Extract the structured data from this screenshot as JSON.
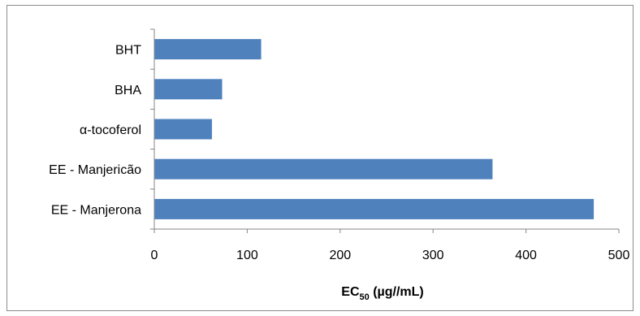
{
  "chart_data": {
    "type": "bar",
    "orientation": "horizontal",
    "categories": [
      "BHT",
      "BHA",
      "α-tocoferol",
      "EE - Manjericão",
      "EE - Manjerona"
    ],
    "values": [
      115,
      73,
      62,
      364,
      473
    ],
    "xlabel_main": "EC",
    "xlabel_sub": "50",
    "xlabel_rest": " (µg//mL)",
    "xlim": [
      0,
      500
    ],
    "xticks": [
      0,
      100,
      200,
      300,
      400,
      500
    ],
    "grid": false,
    "legend": "none",
    "bar_color": "#4f81bd"
  }
}
